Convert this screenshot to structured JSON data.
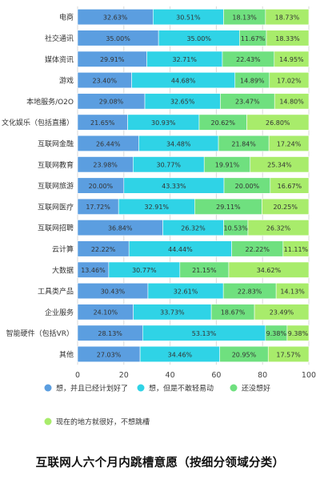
{
  "chart_data": {
    "type": "bar",
    "orientation": "horizontal",
    "stacked": true,
    "title": "互联网人六个月内跳槽意愿（按细分领域分类）",
    "categories": [
      "电商",
      "社交通讯",
      "媒体资讯",
      "游戏",
      "本地服务/O2O",
      "文化娱乐（包括直播）",
      "互联网金融",
      "互联网教育",
      "互联网旅游",
      "互联网医疗",
      "互联网招聘",
      "云计算",
      "大数据",
      "工具类产品",
      "企业服务",
      "智能硬件（包括VR）",
      "其他"
    ],
    "series": [
      {
        "name": "想，并且已经计划好了",
        "color": "#5b9ee0",
        "values": [
          32.63,
          35.0,
          29.91,
          23.4,
          29.08,
          21.65,
          26.44,
          23.98,
          20.0,
          17.72,
          36.84,
          22.22,
          13.46,
          30.43,
          24.1,
          28.13,
          27.03
        ]
      },
      {
        "name": "想，但是不敢轻易动",
        "color": "#2fd3e6",
        "values": [
          30.51,
          35.0,
          32.71,
          44.68,
          32.65,
          30.93,
          34.48,
          30.77,
          43.33,
          32.91,
          26.32,
          44.44,
          30.77,
          32.61,
          33.73,
          53.13,
          34.46
        ]
      },
      {
        "name": "还没想好",
        "color": "#6fe07f",
        "values": [
          18.13,
          11.67,
          22.43,
          14.89,
          23.47,
          20.62,
          21.84,
          19.91,
          20.0,
          29.11,
          10.53,
          22.22,
          21.15,
          22.83,
          18.67,
          9.38,
          20.95
        ]
      },
      {
        "name": "现在的地方就很好，不想跳槽",
        "color": "#a8ec6b",
        "values": [
          18.73,
          18.33,
          14.95,
          17.02,
          14.8,
          26.8,
          17.24,
          25.34,
          16.67,
          20.25,
          26.32,
          11.11,
          34.62,
          14.13,
          23.49,
          9.38,
          17.57
        ]
      }
    ],
    "data_labels": [
      [
        "32.63%",
        "30.51%",
        "18.13%",
        "18.73%"
      ],
      [
        "35.00%",
        "35.00%",
        "11.67%",
        "18.33%"
      ],
      [
        "29.91%",
        "32.71%",
        "22.43%",
        "14.95%"
      ],
      [
        "23.40%",
        "44.68%",
        "14.89%",
        "17.02%"
      ],
      [
        "29.08%",
        "32.65%",
        "23.47%",
        "14.80%"
      ],
      [
        "21.65%",
        "30.93%",
        "20.62%",
        "26.80%"
      ],
      [
        "26.44%",
        "34.48%",
        "21.84%",
        "17.24%"
      ],
      [
        "23.98%",
        "30.77%",
        "19.91%",
        "25.34%"
      ],
      [
        "20.00%",
        "43.33%",
        "20.00%",
        "16.67%"
      ],
      [
        "17.72%",
        "32.91%",
        "29.11%",
        "20.25%"
      ],
      [
        "36.84%",
        "26.32%",
        "10.53%",
        "26.32%"
      ],
      [
        "22.22%",
        "44.44%",
        "22.22%",
        "11.11%"
      ],
      [
        "13.46%",
        "30.77%",
        "21.15%",
        "34.62%"
      ],
      [
        "30.43%",
        "32.61%",
        "22.83%",
        "14.13%"
      ],
      [
        "24.10%",
        "33.73%",
        "18.67%",
        "23.49%"
      ],
      [
        "28.13%",
        "53.13%",
        "9.38%",
        "9.38%"
      ],
      [
        "27.03%",
        "34.46%",
        "20.95%",
        "17.57%"
      ]
    ],
    "x_ticks": [
      "0",
      "20",
      "40",
      "60",
      "80",
      "100"
    ],
    "xlim": [
      0,
      100
    ],
    "xlabel": "",
    "ylabel": "",
    "grid": "vertical",
    "legend_position": "bottom",
    "grid_color": "#d9d9d9",
    "label_color": "#333333"
  }
}
